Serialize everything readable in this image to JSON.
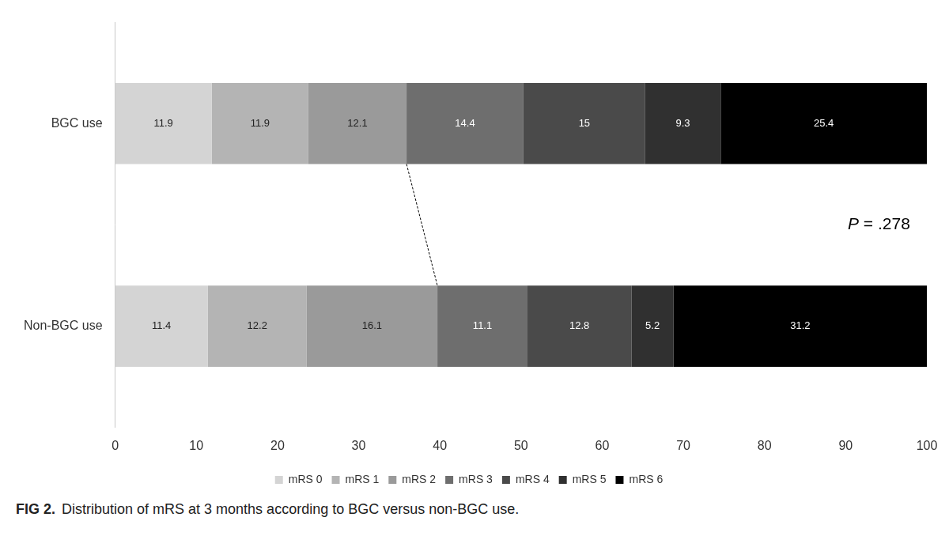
{
  "chart_data": {
    "type": "bar",
    "orientation": "horizontal",
    "stacked": true,
    "data_labels": true,
    "caption_label": "FIG 2.",
    "title": "Distribution of mRS at 3 months according to BGC versus non-BGC use.",
    "annotations": [
      {
        "text": "P = .278"
      }
    ],
    "categories": [
      "BGC use",
      "Non-BGC use"
    ],
    "series": [
      {
        "name": "mRS 0",
        "color": "#d4d4d4",
        "values": [
          11.9,
          11.4
        ]
      },
      {
        "name": "mRS 1",
        "color": "#b4b4b4",
        "values": [
          11.9,
          12.2
        ]
      },
      {
        "name": "mRS 2",
        "color": "#9a9a9a",
        "values": [
          12.1,
          16.1
        ]
      },
      {
        "name": "mRS 3",
        "color": "#6e6e6e",
        "values": [
          14.4,
          11.1
        ]
      },
      {
        "name": "mRS 4",
        "color": "#4a4a4a",
        "values": [
          15,
          12.8
        ]
      },
      {
        "name": "mRS 5",
        "color": "#303030",
        "values": [
          9.3,
          5.2
        ]
      },
      {
        "name": "mRS 6",
        "color": "#000000",
        "values": [
          25.4,
          31.2
        ]
      }
    ],
    "xlim": [
      0,
      100
    ],
    "xticks": [
      0,
      10,
      20,
      30,
      40,
      50,
      60,
      70,
      80,
      90,
      100
    ],
    "grid": false,
    "legend": "bottom"
  }
}
